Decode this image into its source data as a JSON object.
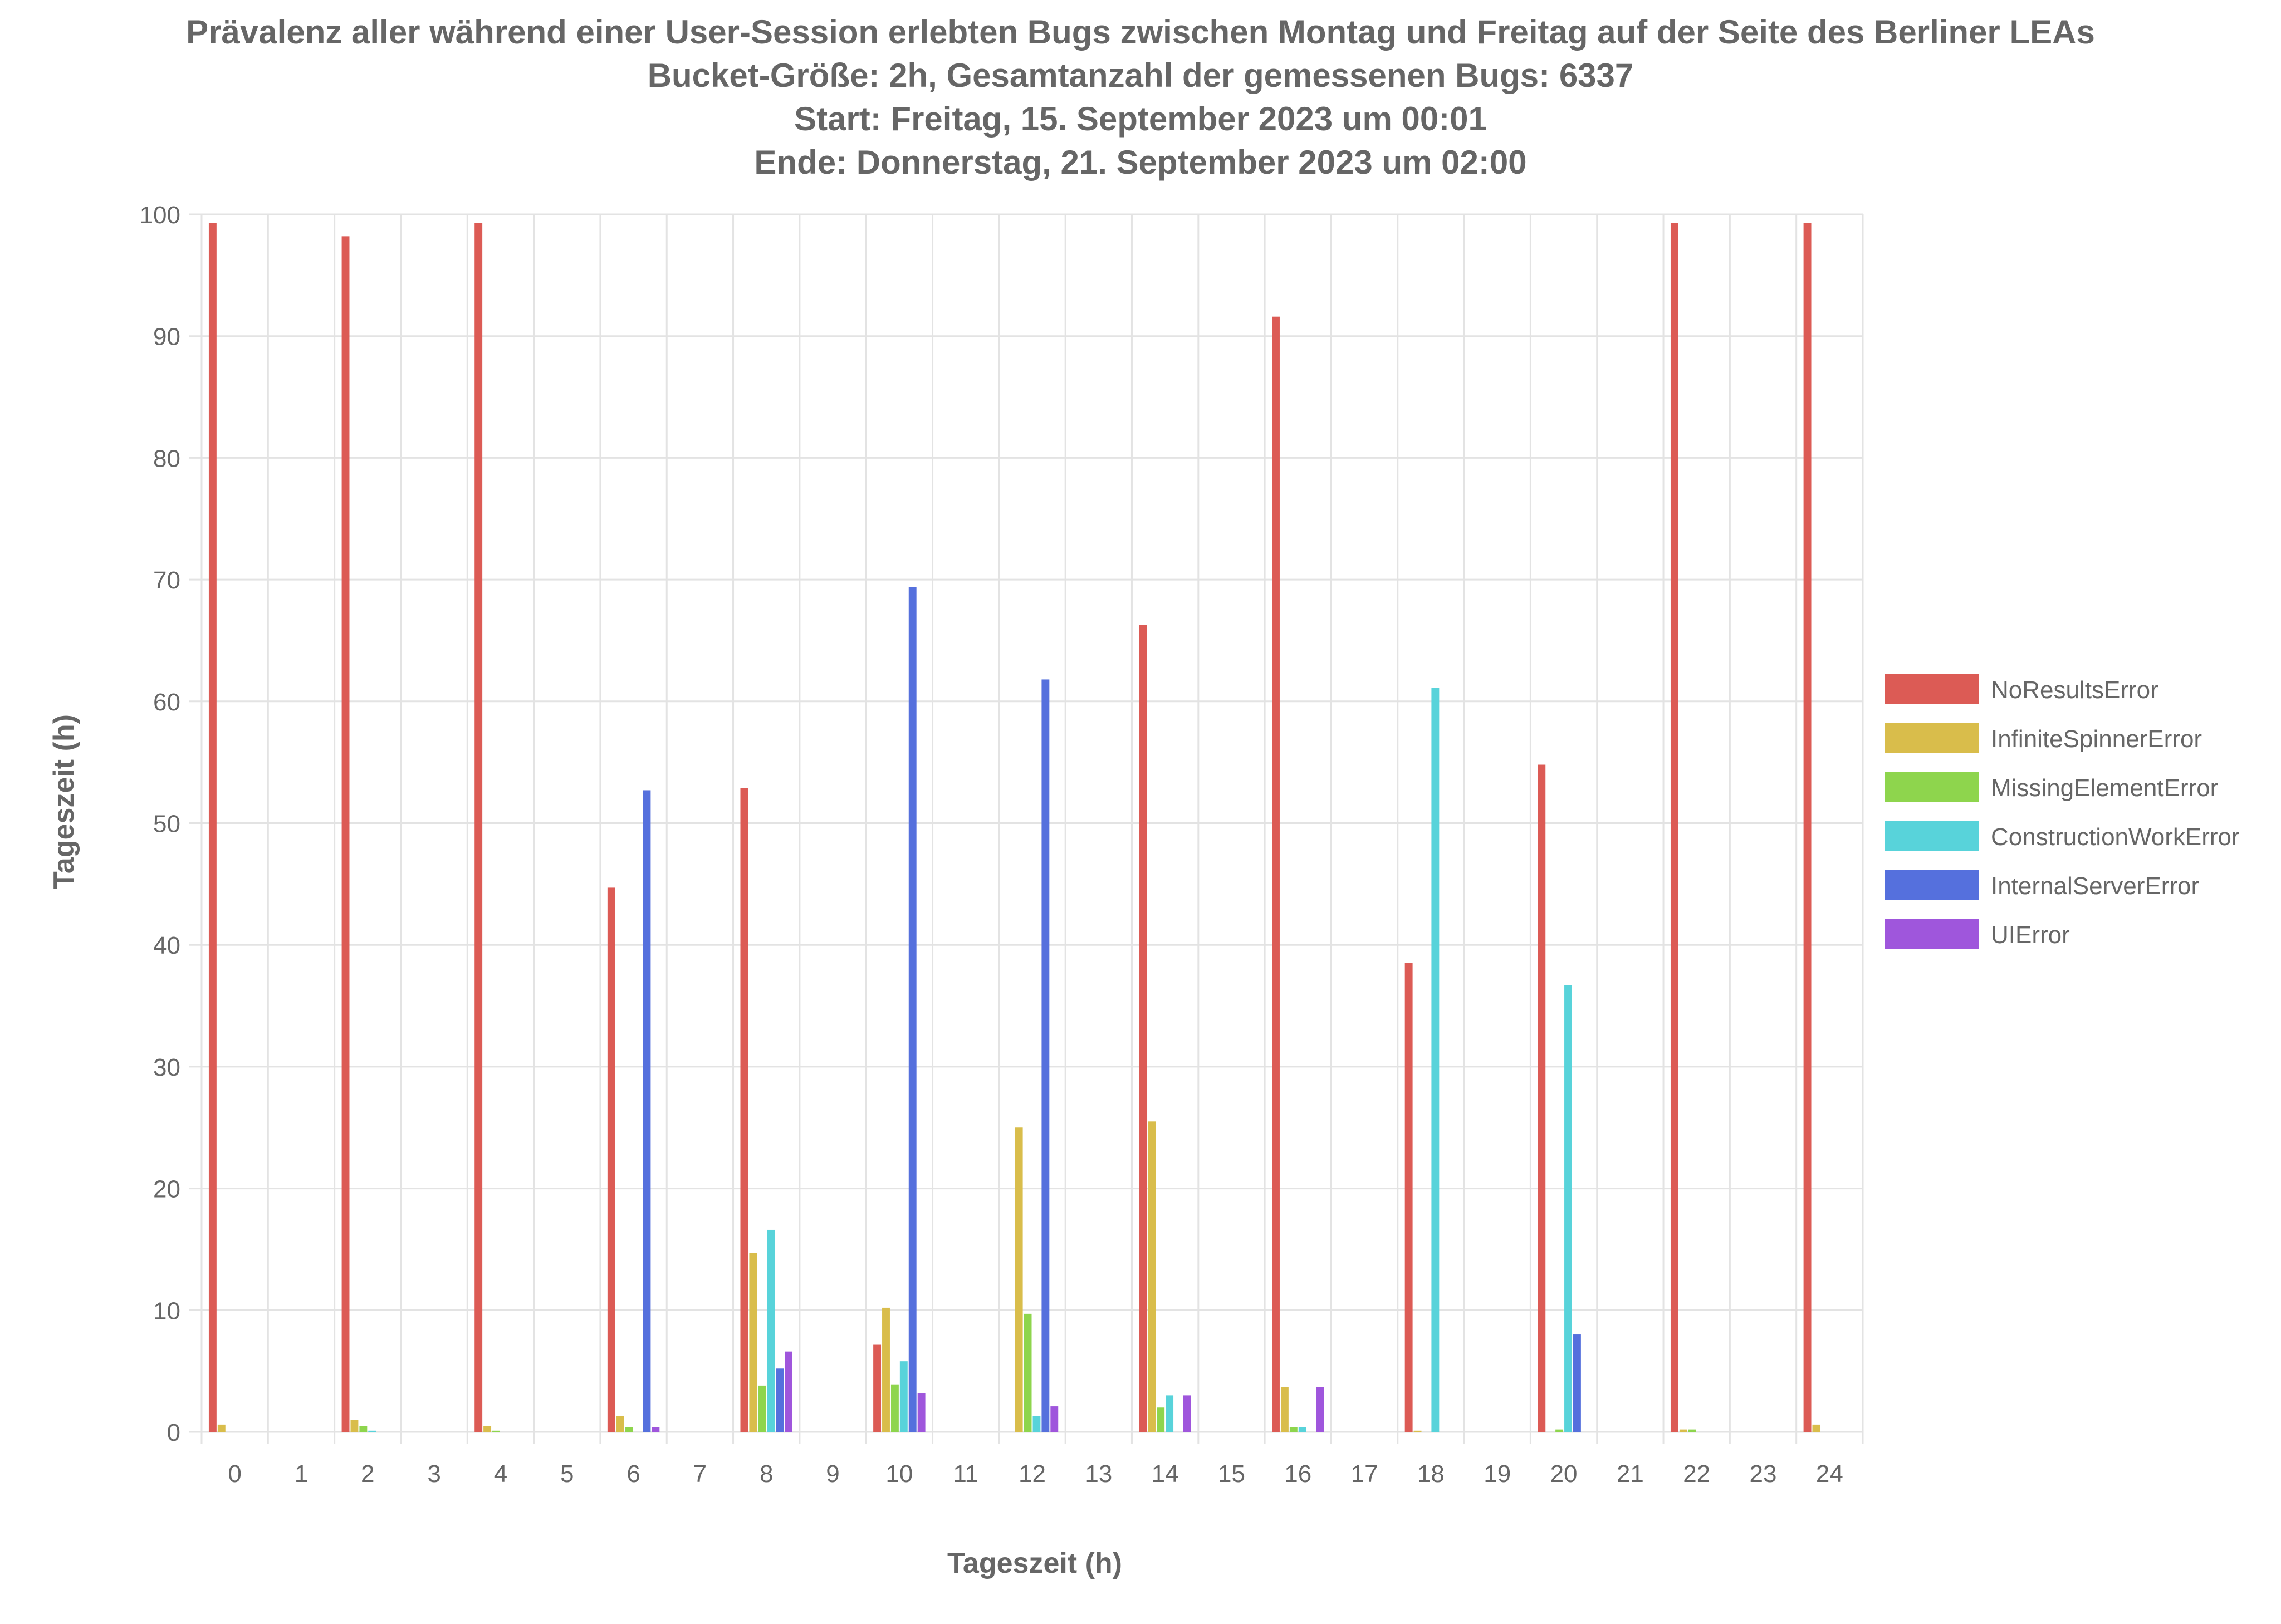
{
  "chart_data": {
    "type": "bar",
    "title_lines": [
      "Prävalenz aller während einer User-Session erlebten Bugs zwischen Montag und Freitag auf der Seite des Berliner LEAs",
      "Bucket-Größe: 2h, Gesamtanzahl der gemessenen Bugs: 6337",
      "Start: Freitag, 15. September 2023 um 00:01",
      "Ende: Donnerstag, 21. September 2023 um 02:00"
    ],
    "xlabel": "Tageszeit (h)",
    "ylabel": "Tageszeit (h)",
    "ylim": [
      0,
      100
    ],
    "yticks": [
      0,
      10,
      20,
      30,
      40,
      50,
      60,
      70,
      80,
      90,
      100
    ],
    "categories": [
      "0",
      "1",
      "2",
      "3",
      "4",
      "5",
      "6",
      "7",
      "8",
      "9",
      "10",
      "11",
      "12",
      "13",
      "14",
      "15",
      "16",
      "17",
      "18",
      "19",
      "20",
      "21",
      "22",
      "23",
      "24"
    ],
    "grid": true,
    "legend_position": "right",
    "series": [
      {
        "name": "NoResultsError",
        "color": "#dc5b55",
        "values": [
          99.3,
          0,
          98.2,
          0,
          99.3,
          0,
          44.7,
          0,
          52.9,
          0,
          7.2,
          0,
          0,
          0,
          66.3,
          0,
          91.6,
          0,
          38.5,
          0,
          54.8,
          0,
          99.3,
          0,
          99.3
        ]
      },
      {
        "name": "InfiniteSpinnerError",
        "color": "#d9bd4b",
        "values": [
          0.6,
          0,
          1.0,
          0,
          0.5,
          0,
          1.3,
          0,
          14.7,
          0,
          10.2,
          0,
          25.0,
          0,
          25.5,
          0,
          3.7,
          0,
          0.1,
          0,
          0,
          0,
          0.2,
          0,
          0.6
        ]
      },
      {
        "name": "MissingElementError",
        "color": "#8ed54d",
        "values": [
          0,
          0,
          0.5,
          0,
          0.1,
          0,
          0.4,
          0,
          3.8,
          0,
          3.9,
          0,
          9.7,
          0,
          2.0,
          0,
          0.4,
          0,
          0,
          0,
          0.2,
          0,
          0.2,
          0,
          0
        ]
      },
      {
        "name": "ConstructionWorkError",
        "color": "#58d3da",
        "values": [
          0,
          0,
          0.1,
          0,
          0,
          0,
          0,
          0,
          16.6,
          0,
          5.8,
          0,
          1.3,
          0,
          3.0,
          0,
          0.4,
          0,
          61.1,
          0,
          36.7,
          0,
          0,
          0,
          0
        ]
      },
      {
        "name": "InternalServerError",
        "color": "#5570dd",
        "values": [
          0,
          0,
          0,
          0,
          0,
          0,
          52.7,
          0,
          5.2,
          0,
          69.4,
          0,
          61.8,
          0,
          0,
          0,
          0,
          0,
          0,
          0,
          8.0,
          0,
          0,
          0,
          0
        ]
      },
      {
        "name": "UIError",
        "color": "#9f56dc",
        "values": [
          0,
          0,
          0,
          0,
          0,
          0,
          0.4,
          0,
          6.6,
          0,
          3.2,
          0,
          2.1,
          0,
          3.0,
          0,
          3.7,
          0,
          0,
          0,
          0,
          0,
          0,
          0,
          0
        ]
      }
    ]
  }
}
